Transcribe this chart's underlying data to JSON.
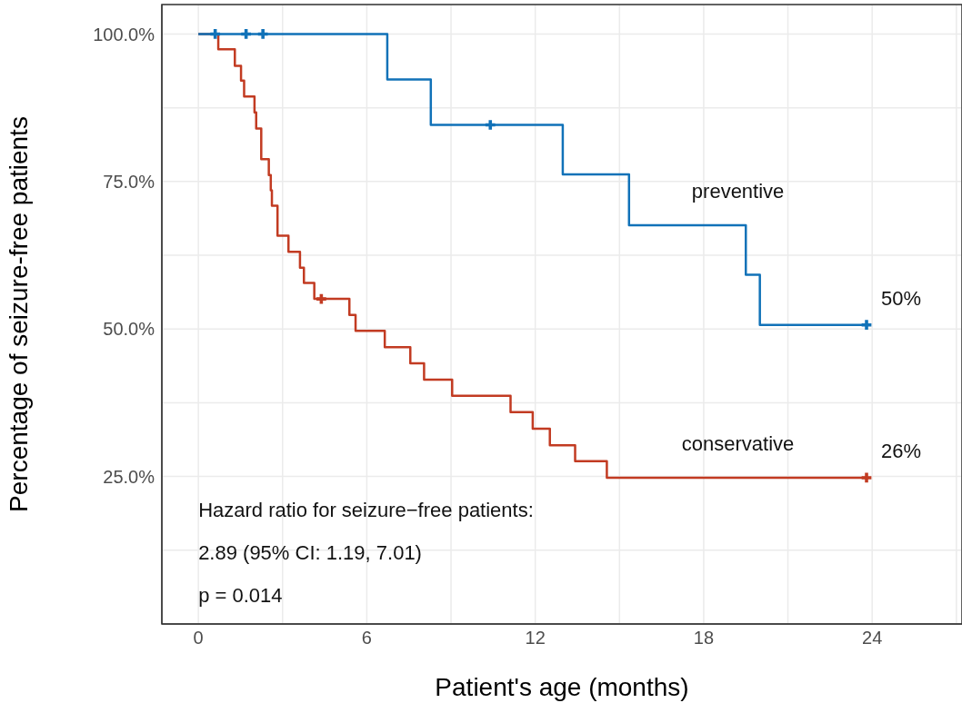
{
  "chart_data": {
    "type": "step",
    "xlabel": "Patient's age (months)",
    "ylabel": "Percentage of seizure-free patients",
    "xlim": [
      -1.3,
      27.2
    ],
    "ylim": [
      0,
      105
    ],
    "xticks": [
      0,
      {
        "value": 3,
        "label": null
      },
      6,
      {
        "value": 9,
        "label": null
      },
      12,
      {
        "value": 15,
        "label": null
      },
      18,
      {
        "value": 21,
        "label": null
      },
      24,
      {
        "value": 27,
        "label": null
      }
    ],
    "yticks": [
      {
        "value": 12.5,
        "label": null
      },
      {
        "value": 25,
        "label": "25.0%"
      },
      {
        "value": 37.5,
        "label": null
      },
      {
        "value": 50,
        "label": "50.0%"
      },
      {
        "value": 62.5,
        "label": null
      },
      {
        "value": 75,
        "label": "75.0%"
      },
      {
        "value": 87.5,
        "label": null
      },
      {
        "value": 100,
        "label": "100.0%"
      }
    ],
    "grid": true,
    "legend": false,
    "series": [
      {
        "name": "preventive",
        "color": "#1172b8",
        "x": [
          0,
          6.73,
          8.28,
          12.98,
          15.34,
          19.5,
          20.0,
          23.8
        ],
        "values": [
          100,
          92.3,
          84.6,
          76.2,
          67.6,
          59.2,
          50.7,
          50.7
        ]
      },
      {
        "name": "conservative",
        "color": "#c23b22",
        "x": [
          0,
          0.71,
          1.3,
          1.52,
          1.63,
          2.0,
          2.06,
          2.24,
          2.51,
          2.58,
          2.62,
          2.82,
          3.21,
          3.62,
          3.76,
          4.13,
          5.38,
          5.6,
          6.64,
          7.55,
          8.04,
          9.04,
          11.12,
          11.91,
          12.52,
          13.42,
          14.55,
          23.8
        ],
        "values": [
          100,
          97.4,
          94.6,
          92.1,
          89.4,
          86.7,
          84.0,
          78.8,
          76.1,
          73.5,
          70.9,
          65.8,
          63.1,
          60.4,
          57.8,
          55.1,
          52.4,
          49.7,
          46.9,
          44.2,
          41.4,
          38.7,
          35.9,
          33.1,
          30.3,
          27.6,
          24.8,
          24.8
        ]
      },
      {
        "type": "scatter",
        "marker": "cross",
        "color": "#1172b8",
        "x": [
          0.6,
          1.7,
          2.3,
          10.4,
          23.8
        ],
        "values": [
          100,
          100,
          100,
          84.6,
          50.7
        ]
      },
      {
        "type": "scatter",
        "marker": "cross",
        "color": "#c23b22",
        "x": [
          4.38,
          23.8
        ],
        "values": [
          55.1,
          24.8
        ]
      }
    ],
    "annotations": [
      "50%",
      "26%",
      "Hazard ratio for seizure−free patients:",
      "2.89 (95% CI: 1.19, 7.01)",
      "p = 0.014"
    ]
  }
}
